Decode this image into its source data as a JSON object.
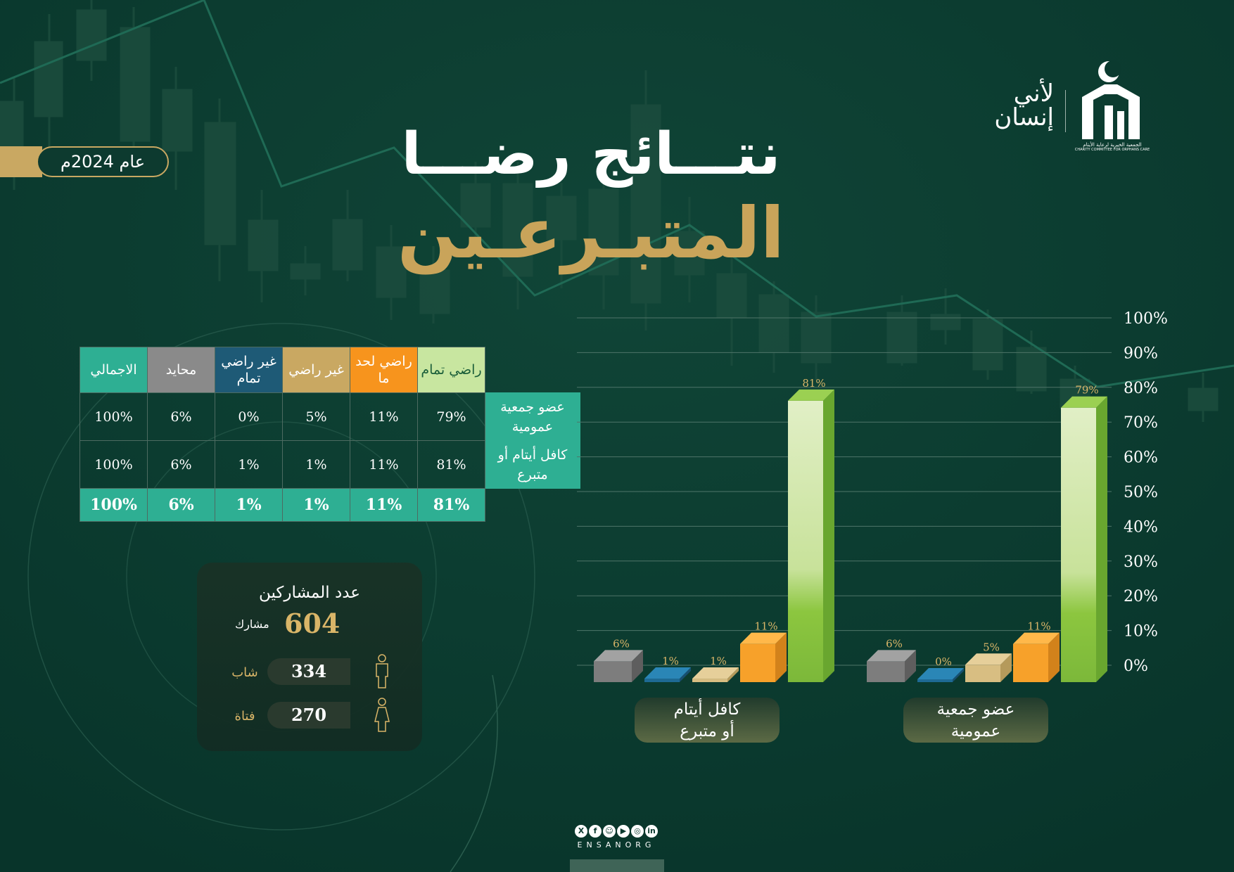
{
  "year": "عام 2024م",
  "title": {
    "line1": "نتـــائج رضـــا",
    "line2": "المتبـرعـين"
  },
  "logo": {
    "tagline_1": "لأني",
    "tagline_2": "إنسان",
    "org_name": "الجمعية الخيرية لرعاية الأيتام",
    "org_name_en": "CHARITY COMMITTEE FOR ORPHANS CARE"
  },
  "table": {
    "headers": [
      "راضي تمام",
      "راضي لحد ما",
      "غير راضي",
      "غير راضي تمام",
      "محايد",
      "الاجمالي"
    ],
    "rows": [
      {
        "label": "عضو جمعية عمومية",
        "values": [
          "79%",
          "11%",
          "5%",
          "0%",
          "6%",
          "100%"
        ]
      },
      {
        "label": "كافل أيتام أو متبرع",
        "values": [
          "81%",
          "11%",
          "1%",
          "1%",
          "6%",
          "100%"
        ]
      }
    ],
    "totals": [
      "81%",
      "11%",
      "1%",
      "1%",
      "6%",
      "100%"
    ]
  },
  "participants": {
    "title": "عدد المشاركين",
    "total": "604",
    "unit": "مشارك",
    "male_count": "334",
    "male_label": "شاب",
    "female_count": "270",
    "female_label": "فتاة"
  },
  "chart_data": {
    "type": "bar",
    "categories": [
      "عضو جمعية عمومية",
      "كافل أيتام أو متبرع"
    ],
    "category_labels": [
      [
        "عضو جمعية",
        "عمومية"
      ],
      [
        "كافل أيتام",
        "أو متبرع"
      ]
    ],
    "series": [
      {
        "values": [
          79,
          81
        ],
        "color": "#8cc63f"
      },
      {
        "values": [
          11,
          11
        ],
        "color": "#f7a12a"
      },
      {
        "values": [
          5,
          1
        ],
        "color": "#c9a862"
      },
      {
        "values": [
          0,
          1
        ],
        "color": "#1e6a94"
      },
      {
        "values": [
          6,
          6
        ],
        "color": "#7a7a7a"
      }
    ],
    "data_labels": [
      [
        "79%",
        "11%",
        "5%",
        "0%",
        "6%"
      ],
      [
        "81%",
        "11%",
        "1%",
        "1%",
        "6%"
      ]
    ],
    "yticks": [
      "0%",
      "10%",
      "20%",
      "30%",
      "40%",
      "50%",
      "60%",
      "70%",
      "80%",
      "90%",
      "100%"
    ],
    "ylim": [
      0,
      100
    ],
    "grid": true
  },
  "colors": {
    "background": "#0b3a2f",
    "gold": "#c9a862",
    "teal": "#2eaf93"
  },
  "social": {
    "icons": [
      "x-icon",
      "facebook-icon",
      "snapchat-icon",
      "youtube-icon",
      "instagram-icon",
      "linkedin-icon"
    ],
    "handle": "ENSANORG"
  }
}
